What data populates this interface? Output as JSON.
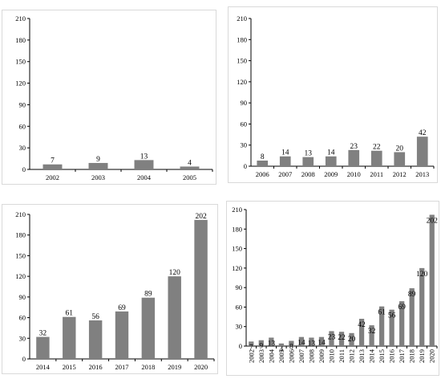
{
  "chart_data": [
    {
      "type": "bar",
      "categories": [
        "2002",
        "2003",
        "2004",
        "2005"
      ],
      "values": [
        7,
        9,
        13,
        4
      ],
      "title": "",
      "xlabel": "",
      "ylabel": "",
      "ylim": [
        0,
        210
      ],
      "yticks": [
        "0",
        "30",
        "60",
        "90",
        "120",
        "150",
        "180",
        "210"
      ],
      "bar_color": "#808080"
    },
    {
      "type": "bar",
      "categories": [
        "2006",
        "2007",
        "2008",
        "2009",
        "2010",
        "2011",
        "2012",
        "2013"
      ],
      "values": [
        8,
        14,
        13,
        14,
        23,
        22,
        20,
        42
      ],
      "title": "",
      "xlabel": "",
      "ylabel": "",
      "ylim": [
        0,
        210
      ],
      "yticks": [
        "0",
        "30",
        "60",
        "90",
        "120",
        "150",
        "180",
        "210"
      ],
      "bar_color": "#808080"
    },
    {
      "type": "bar",
      "categories": [
        "2014",
        "2015",
        "2016",
        "2017",
        "2018",
        "2019",
        "2020"
      ],
      "values": [
        32,
        61,
        56,
        69,
        89,
        120,
        202
      ],
      "title": "",
      "xlabel": "",
      "ylabel": "",
      "ylim": [
        0,
        210
      ],
      "yticks": [
        "0",
        "30",
        "60",
        "90",
        "120",
        "150",
        "180",
        "210"
      ],
      "bar_color": "#808080"
    },
    {
      "type": "bar",
      "categories": [
        "2002",
        "2003",
        "2004",
        "2005",
        "2006",
        "2007",
        "2008",
        "2009",
        "2010",
        "2011",
        "2012",
        "2013",
        "2014",
        "2015",
        "2016",
        "2017",
        "2018",
        "2019",
        "2020"
      ],
      "values": [
        7,
        9,
        13,
        4,
        8,
        14,
        13,
        14,
        23,
        22,
        20,
        42,
        32,
        61,
        56,
        69,
        89,
        120,
        202
      ],
      "title": "",
      "xlabel": "",
      "ylabel": "",
      "ylim": [
        0,
        210
      ],
      "yticks": [
        "0",
        "30",
        "60",
        "90",
        "120",
        "150",
        "180",
        "210"
      ],
      "bar_color": "#808080"
    }
  ]
}
